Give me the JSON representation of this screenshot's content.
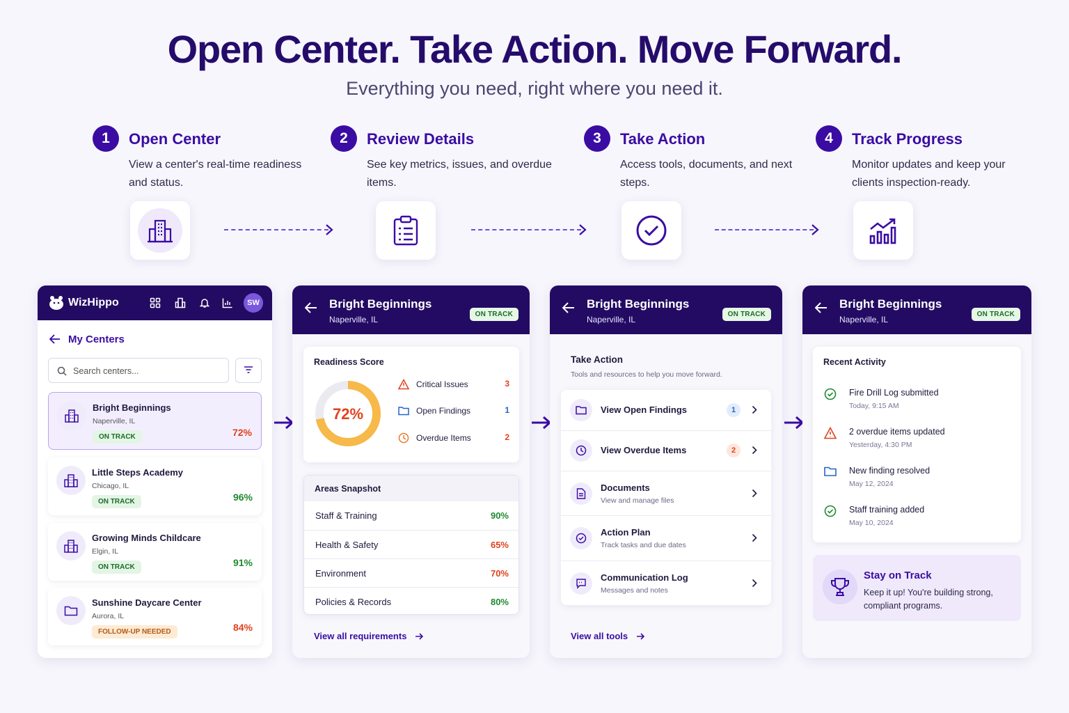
{
  "header": {
    "title": "Open Center. Take Action. Move Forward.",
    "subtitle": "Everything you need, right where you need it."
  },
  "steps": [
    {
      "num": "1",
      "title": "Open Center",
      "desc": "View a center's real-time readiness and status.",
      "icon": "building-icon"
    },
    {
      "num": "2",
      "title": "Review Details",
      "desc": "See key metrics, issues, and overdue items.",
      "icon": "clipboard-icon"
    },
    {
      "num": "3",
      "title": "Take Action",
      "desc": "Access tools, documents, and next steps.",
      "icon": "check-circle-icon"
    },
    {
      "num": "4",
      "title": "Track Progress",
      "desc": "Monitor updates and keep your clients inspection-ready.",
      "icon": "growth-chart-icon"
    }
  ],
  "app": {
    "brand": "WizHippo",
    "avatar": "SW",
    "nav_icons": [
      "grid-icon",
      "building-icon",
      "bell-icon",
      "chart-icon"
    ]
  },
  "centers_panel": {
    "title": "My Centers",
    "search_placeholder": "Search centers...",
    "items": [
      {
        "name": "Bright Beginnings",
        "location": "Naperville, IL",
        "status": "ON TRACK",
        "percent": "72%",
        "pct_color": "#e0421c"
      },
      {
        "name": "Little Steps Academy",
        "location": "Chicago, IL",
        "status": "ON TRACK",
        "percent": "96%",
        "pct_color": "#1f8a2e"
      },
      {
        "name": "Growing Minds Childcare",
        "location": "Elgin, IL",
        "status": "ON TRACK",
        "percent": "91%",
        "pct_color": "#1f8a2e"
      },
      {
        "name": "Sunshine Daycare Center",
        "location": "Aurora, IL",
        "status": "FOLLOW-UP NEEDED",
        "percent": "84%",
        "pct_color": "#e0421c"
      }
    ]
  },
  "detail": {
    "center": "Bright Beginnings",
    "location": "Naperville, IL",
    "status": "ON TRACK"
  },
  "review": {
    "readiness_title": "Readiness Score",
    "score": "72%",
    "score_fraction": 0.72,
    "issues": [
      {
        "label": "Critical Issues",
        "value": "3",
        "color": "#e0421c",
        "icon": "warning-icon"
      },
      {
        "label": "Open Findings",
        "value": "1",
        "color": "#2563c9",
        "icon": "folder-icon"
      },
      {
        "label": "Overdue Items",
        "value": "2",
        "color": "#e0421c",
        "icon": "clock-icon"
      }
    ],
    "areas_title": "Areas Snapshot",
    "areas": [
      {
        "name": "Staff & Training",
        "value": "90%",
        "color": "#1f8a2e"
      },
      {
        "name": "Health & Safety",
        "value": "65%",
        "color": "#e0421c"
      },
      {
        "name": "Environment",
        "value": "70%",
        "color": "#e0421c"
      },
      {
        "name": "Policies & Records",
        "value": "80%",
        "color": "#1f8a2e"
      }
    ],
    "link": "View all requirements"
  },
  "action": {
    "title": "Take Action",
    "subtitle": "Tools and resources to help you move forward.",
    "tools": [
      {
        "name": "View Open Findings",
        "sub": "",
        "count": "1",
        "count_color": "#2563c9",
        "count_bg": "#e3ecfb",
        "icon": "folder-icon"
      },
      {
        "name": "View Overdue Items",
        "sub": "",
        "count": "2",
        "count_color": "#e0421c",
        "count_bg": "#fde7dd",
        "icon": "clock-icon"
      },
      {
        "name": "Documents",
        "sub": "View and manage files",
        "count": "",
        "icon": "document-icon"
      },
      {
        "name": "Action Plan",
        "sub": "Track tasks and due dates",
        "count": "",
        "icon": "check-circle-icon"
      },
      {
        "name": "Communication Log",
        "sub": "Messages and notes",
        "count": "",
        "icon": "chat-icon"
      }
    ],
    "link": "View all tools"
  },
  "progress": {
    "title": "Recent Activity",
    "items": [
      {
        "text": "Fire Drill Log submitted",
        "date": "Today, 9:15 AM",
        "icon": "check-circle-icon"
      },
      {
        "text": "2 overdue items updated",
        "date": "Yesterday, 4:30 PM",
        "icon": "warning-icon"
      },
      {
        "text": "New finding resolved",
        "date": "May 12, 2024",
        "icon": "folder-icon"
      },
      {
        "text": "Staff training added",
        "date": "May 10, 2024",
        "icon": "check-circle-icon"
      }
    ],
    "promo_title": "Stay on Track",
    "promo_text": "Keep it up! You're building strong, compliant programs."
  },
  "colors": {
    "brand": "#230b63",
    "accent": "#3a0ca3",
    "good": "#1f8a2e",
    "bad": "#e0421c",
    "gauge": "#f6b94a"
  }
}
